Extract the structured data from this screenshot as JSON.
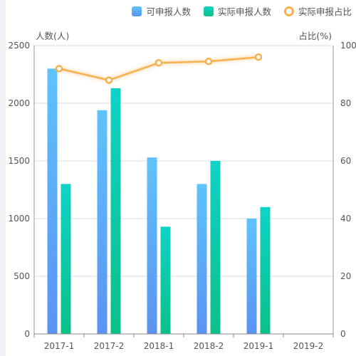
{
  "legend": {
    "planned": "可申报人数",
    "actual": "实际申报人数",
    "ratio": "实际申报占比"
  },
  "colors": {
    "bar_planned_top": "#5ec3fb",
    "bar_planned_bottom": "#5a93f3",
    "bar_actual_top": "#10d2c6",
    "bar_actual_bottom": "#0cc089",
    "line": "#f5b14e",
    "grid": "#dcdcdc",
    "axis_text": "#555555"
  },
  "chart_data": {
    "type": "bar",
    "categories": [
      "2017-1",
      "2017-2",
      "2018-1",
      "2018-2",
      "2019-1",
      "2019-2"
    ],
    "series": [
      {
        "name": "可申报人数",
        "type": "bar",
        "axis": "left",
        "values": [
          2300,
          1940,
          1530,
          1300,
          1000,
          null
        ]
      },
      {
        "name": "实际申报人数",
        "type": "bar",
        "axis": "left",
        "values": [
          1300,
          2130,
          930,
          1500,
          1100,
          null
        ]
      },
      {
        "name": "实际申报占比",
        "type": "line",
        "axis": "right",
        "values": [
          92,
          88,
          94,
          94.5,
          96,
          null
        ]
      }
    ],
    "ylabel": "人数(人)",
    "y2label": "占比(%)",
    "ylim": [
      0,
      2500
    ],
    "y2lim": [
      0,
      100
    ],
    "yticks": [
      "0",
      "500",
      "1000",
      "1500",
      "2000",
      "2500"
    ],
    "y2ticks": [
      "0",
      "20",
      "40",
      "60",
      "80",
      "100"
    ],
    "grid": true,
    "legend_position": "top-right"
  }
}
